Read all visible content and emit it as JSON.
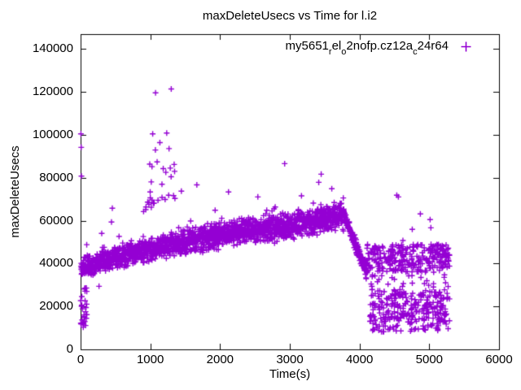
{
  "chart_data": {
    "type": "scatter",
    "title": "maxDeleteUsecs vs Time for l.i2",
    "xlabel": "Time(s)",
    "ylabel": "maxDeleteUsecs",
    "xlim": [
      0,
      6000
    ],
    "ylim": [
      0,
      147000
    ],
    "x_tick_values": [
      0,
      1000,
      2000,
      3000,
      4000,
      5000,
      6000
    ],
    "x_tick_labels": [
      "0",
      "1000",
      "2000",
      "3000",
      "4000",
      "5000",
      "6000"
    ],
    "y_tick_values": [
      0,
      20000,
      40000,
      60000,
      80000,
      100000,
      120000,
      140000
    ],
    "y_tick_labels": [
      "0",
      "20000",
      "40000",
      "60000",
      "80000",
      "100000",
      "120000",
      "140000"
    ],
    "grid": false,
    "axis_color": "#000000",
    "tick_length": 7,
    "legend": {
      "position": "top-right-inside",
      "marker": "plus",
      "label_plain": "my5651_rel_o2nofp.cz12a_c24r64",
      "label_segments": [
        {
          "text": "my5651"
        },
        {
          "text": "r",
          "sub": true
        },
        {
          "text": "el"
        },
        {
          "text": "o",
          "sub": true
        },
        {
          "text": "2nofp.cz12a"
        },
        {
          "text": "c",
          "sub": true
        },
        {
          "text": "24r64"
        }
      ]
    },
    "series": [
      {
        "name": "my5651_rel_o2nofp.cz12a_c24r64",
        "marker": "plus",
        "color": "#9400d3",
        "marker_size": 7,
        "marker_line_width": 1.4,
        "time_range_s": [
          0,
          5290
        ],
        "cloud_bands": [
          {
            "label": "startup-low",
            "t0": 0,
            "t1": 90,
            "n": 30,
            "c0": 19500,
            "c1": 19500,
            "hw0": 9500,
            "hw1": 9500,
            "dist": "uniform"
          },
          {
            "label": "ramp-1",
            "t0": 5,
            "t1": 600,
            "n": 290,
            "c0": 38000,
            "c1": 43800,
            "hw0": 5200,
            "hw1": 6000,
            "dist": "tri",
            "up_p": 0.03,
            "up_max": 9000,
            "dn_p": 0.012,
            "dn_max": 8000
          },
          {
            "label": "ramp-2",
            "t0": 600,
            "t1": 1500,
            "n": 435,
            "c0": 43800,
            "c1": 50000,
            "hw0": 6000,
            "hw1": 6800,
            "dist": "tri",
            "up_p": 0.03,
            "up_max": 9000,
            "dn_p": 0.012,
            "dn_max": 8000
          },
          {
            "label": "ramp-3",
            "t0": 1500,
            "t1": 2400,
            "n": 435,
            "c0": 50000,
            "c1": 55500,
            "hw0": 6800,
            "hw1": 7000,
            "dist": "tri",
            "up_p": 0.03,
            "up_max": 9000,
            "dn_p": 0.012,
            "dn_max": 8000
          },
          {
            "label": "ramp-4",
            "t0": 2400,
            "t1": 3100,
            "n": 340,
            "c0": 55500,
            "c1": 58500,
            "hw0": 7000,
            "hw1": 7000,
            "dist": "tri",
            "up_p": 0.03,
            "up_max": 9000,
            "dn_p": 0.012,
            "dn_max": 8000
          },
          {
            "label": "ramp-5",
            "t0": 3100,
            "t1": 3780,
            "n": 330,
            "c0": 58500,
            "c1": 62300,
            "hw0": 7000,
            "hw1": 7600,
            "dist": "tri",
            "up_p": 0.035,
            "up_max": 9000,
            "dn_p": 0.012,
            "dn_max": 8000
          },
          {
            "label": "pre-spike",
            "t0": 900,
            "t1": 1000,
            "n": 6,
            "c0": 68000,
            "c1": 68000,
            "hw0": 5000,
            "hw1": 5000,
            "dist": "uniform"
          },
          {
            "label": "spike-cluster",
            "t0": 980,
            "t1": 1360,
            "n": 26,
            "c0": 82000,
            "c1": 82000,
            "hw0": 16000,
            "hw1": 16000,
            "dist": "uniform"
          },
          {
            "label": "decline",
            "t0": 3780,
            "t1": 4110,
            "n": 150,
            "c0": 62300,
            "c1": 35500,
            "hw0": 3200,
            "hw1": 4500,
            "dist": "tri"
          },
          {
            "label": "tail-upper",
            "t0": 4100,
            "t1": 5290,
            "n": 275,
            "c0": 42500,
            "c1": 42500,
            "hw0": 6500,
            "hw1": 6500,
            "dist": "uniform",
            "up_p": 0.02,
            "up_max": 5000
          },
          {
            "label": "tail-lower",
            "t0": 4150,
            "t1": 5290,
            "n": 300,
            "c0": 18000,
            "c1": 18000,
            "hw0": 10000,
            "hw1": 10000,
            "dist": "uniform"
          },
          {
            "label": "tail-mid-sparse",
            "t0": 4150,
            "t1": 5290,
            "n": 26,
            "c0": 31800,
            "c1": 31800,
            "hw0": 3000,
            "hw1": 3000,
            "dist": "uniform"
          }
        ],
        "outlier_points": [
          [
            5,
            100500
          ],
          [
            9,
            94200
          ],
          [
            12,
            80800
          ],
          [
            303,
            54100
          ],
          [
            443,
            59400
          ],
          [
            455,
            65800
          ],
          [
            1034,
            100500
          ],
          [
            1235,
            100900
          ],
          [
            1075,
            119600
          ],
          [
            1300,
            121400
          ],
          [
            1445,
            73800
          ],
          [
            1667,
            76700
          ],
          [
            2121,
            73400
          ],
          [
            2542,
            71100
          ],
          [
            2926,
            86600
          ],
          [
            3415,
            77900
          ],
          [
            3450,
            81700
          ],
          [
            3602,
            74900
          ],
          [
            4534,
            71900
          ],
          [
            4557,
            71100
          ],
          [
            4756,
            56000
          ],
          [
            4872,
            63200
          ],
          [
            5012,
            60500
          ],
          [
            5023,
            56700
          ]
        ]
      }
    ]
  }
}
